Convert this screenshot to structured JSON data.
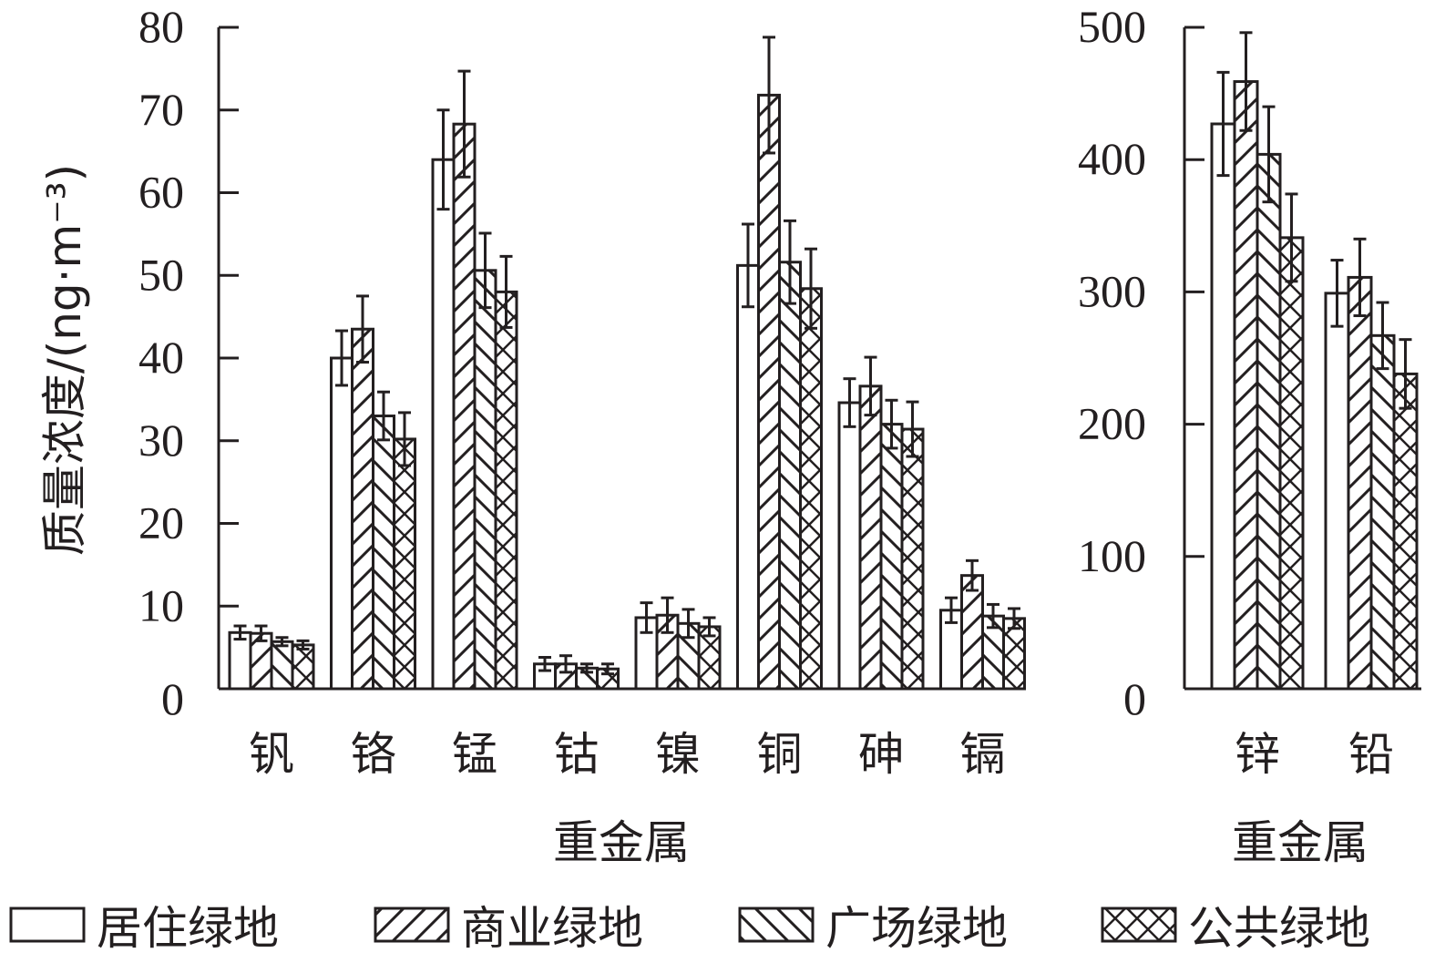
{
  "chart_data": [
    {
      "type": "bar",
      "ylabel": "质量浓度/(ng·m⁻³)",
      "xlabel": "重金属",
      "ylim": [
        0,
        80
      ],
      "yticks": [
        0,
        10,
        20,
        30,
        40,
        50,
        60,
        70,
        80
      ],
      "categories": [
        "钒",
        "铬",
        "锰",
        "钴",
        "镍",
        "铜",
        "砷",
        "镉"
      ],
      "series": [
        {
          "name": "居住绿地",
          "values": [
            6.8,
            40,
            64,
            3.0,
            8.6,
            51.2,
            34.6,
            9.5
          ],
          "error_top": [
            7.6,
            43.3,
            70,
            3.8,
            10.4,
            56.2,
            37.5,
            11
          ]
        },
        {
          "name": "商业绿地",
          "values": [
            6.7,
            43.5,
            68.3,
            3.0,
            8.9,
            71.8,
            36.6,
            13.7
          ],
          "error_top": [
            7.6,
            47.5,
            74.7,
            4.0,
            11,
            78.8,
            40.1,
            15.5
          ]
        },
        {
          "name": "广场绿地",
          "values": [
            5.7,
            33,
            50.6,
            2.5,
            7.9,
            51.6,
            32,
            8.8
          ],
          "error_top": [
            6.2,
            35.9,
            55.1,
            3.0,
            9.6,
            56.6,
            34.9,
            10.2
          ]
        },
        {
          "name": "公共绿地",
          "values": [
            5.3,
            30.2,
            48,
            2.4,
            7.5,
            48.4,
            31.4,
            8.5
          ],
          "error_top": [
            5.8,
            33.4,
            52.3,
            3.0,
            8.6,
            53.2,
            34.7,
            9.7
          ]
        }
      ]
    },
    {
      "type": "bar",
      "xlabel": "重金属",
      "ylim": [
        0,
        500
      ],
      "yticks": [
        0,
        100,
        200,
        300,
        400,
        500
      ],
      "categories": [
        "锌",
        "铅"
      ],
      "series": [
        {
          "name": "居住绿地",
          "values": [
            427,
            299
          ],
          "error_top": [
            466,
            324
          ]
        },
        {
          "name": "商业绿地",
          "values": [
            459,
            311
          ],
          "error_top": [
            496,
            340
          ]
        },
        {
          "name": "广场绿地",
          "values": [
            404,
            267
          ],
          "error_top": [
            440,
            292
          ]
        },
        {
          "name": "公共绿地",
          "values": [
            341,
            238
          ],
          "error_top": [
            374,
            264
          ]
        }
      ]
    }
  ],
  "legend": [
    "居住绿地",
    "商业绿地",
    "广场绿地",
    "公共绿地"
  ]
}
